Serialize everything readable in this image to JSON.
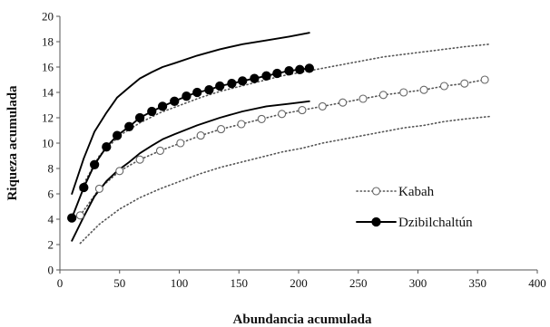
{
  "chart_data": {
    "type": "line",
    "title": "",
    "xlabel": "Abundancia acumulada",
    "ylabel": "Riqueza acumulada",
    "xlim": [
      0,
      400
    ],
    "ylim": [
      0,
      20
    ],
    "x_ticks": [
      0,
      50,
      100,
      150,
      200,
      250,
      300,
      350,
      400
    ],
    "y_ticks": [
      0,
      2,
      4,
      6,
      8,
      10,
      12,
      14,
      16,
      18,
      20
    ],
    "grid": false,
    "legend": "right",
    "series": [
      {
        "name": "Kabah",
        "role": "mean",
        "style": "dotted-open-circle",
        "color": "#555555",
        "x": [
          17,
          33,
          50,
          67,
          84,
          101,
          118,
          135,
          152,
          169,
          186,
          203,
          220,
          237,
          254,
          271,
          288,
          305,
          322,
          339,
          356
        ],
        "y": [
          4.3,
          6.4,
          7.8,
          8.7,
          9.4,
          10.0,
          10.6,
          11.1,
          11.5,
          11.9,
          12.3,
          12.6,
          12.9,
          13.2,
          13.5,
          13.8,
          14.0,
          14.2,
          14.5,
          14.7,
          15.0
        ]
      },
      {
        "name": "Kabah upper 95% CI",
        "role": "ci-upper",
        "style": "dotted",
        "color": "#555555",
        "x": [
          17,
          33,
          50,
          67,
          84,
          101,
          118,
          135,
          152,
          169,
          186,
          203,
          220,
          237,
          254,
          271,
          288,
          305,
          322,
          339,
          360
        ],
        "y": [
          6.3,
          9.0,
          10.6,
          11.6,
          12.4,
          13.0,
          13.6,
          14.1,
          14.5,
          14.9,
          15.3,
          15.6,
          15.9,
          16.2,
          16.5,
          16.8,
          17.0,
          17.2,
          17.4,
          17.6,
          17.8
        ]
      },
      {
        "name": "Kabah lower 95% CI",
        "role": "ci-lower",
        "style": "dotted",
        "color": "#555555",
        "x": [
          17,
          33,
          50,
          67,
          84,
          101,
          118,
          135,
          152,
          169,
          186,
          203,
          220,
          237,
          254,
          271,
          288,
          305,
          322,
          339,
          360
        ],
        "y": [
          2.1,
          3.6,
          4.8,
          5.7,
          6.4,
          7.0,
          7.6,
          8.1,
          8.5,
          8.9,
          9.3,
          9.6,
          10.0,
          10.3,
          10.6,
          10.9,
          11.2,
          11.4,
          11.7,
          11.9,
          12.1
        ]
      },
      {
        "name": "Dzibilchaltún",
        "role": "mean",
        "style": "solid-filled-circle",
        "color": "#000000",
        "x": [
          10,
          20,
          29,
          39,
          48,
          58,
          67,
          77,
          86,
          96,
          106,
          115,
          125,
          134,
          144,
          153,
          163,
          173,
          182,
          192,
          201,
          209
        ],
        "y": [
          4.1,
          6.5,
          8.3,
          9.7,
          10.6,
          11.3,
          12.0,
          12.5,
          12.9,
          13.3,
          13.7,
          14.0,
          14.2,
          14.5,
          14.7,
          14.9,
          15.1,
          15.3,
          15.5,
          15.7,
          15.8,
          15.9
        ]
      },
      {
        "name": "Dzibilchaltún upper 95% CI",
        "role": "ci-upper",
        "style": "solid",
        "color": "#000000",
        "x": [
          10,
          20,
          29,
          39,
          48,
          58,
          67,
          77,
          86,
          96,
          115,
          134,
          153,
          173,
          192,
          209
        ],
        "y": [
          6.0,
          8.8,
          10.9,
          12.4,
          13.6,
          14.4,
          15.1,
          15.6,
          16.0,
          16.3,
          16.9,
          17.4,
          17.8,
          18.1,
          18.4,
          18.7
        ]
      },
      {
        "name": "Dzibilchaltún lower 95% CI",
        "role": "ci-lower",
        "style": "solid",
        "color": "#000000",
        "x": [
          10,
          20,
          29,
          39,
          48,
          58,
          67,
          77,
          86,
          96,
          115,
          134,
          153,
          173,
          192,
          209
        ],
        "y": [
          2.3,
          4.2,
          5.8,
          7.0,
          7.8,
          8.5,
          9.2,
          9.8,
          10.3,
          10.7,
          11.4,
          12.0,
          12.5,
          12.9,
          13.1,
          13.3
        ]
      }
    ]
  }
}
